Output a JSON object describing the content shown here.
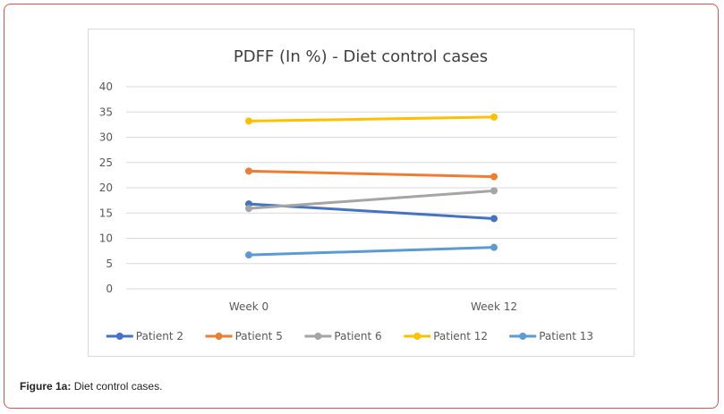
{
  "caption": {
    "label": "Figure 1a:",
    "text": " Diet control cases."
  },
  "chart_data": {
    "type": "line",
    "title": "PDFF (In %) - Diet control cases",
    "categories": [
      "Week 0",
      "Week 12"
    ],
    "ylim": [
      0,
      40
    ],
    "yticks": [
      0,
      5,
      10,
      15,
      20,
      25,
      30,
      35,
      40
    ],
    "grid": true,
    "legend_position": "bottom",
    "series": [
      {
        "name": "Patient 2",
        "color": "#4472C4",
        "values": [
          16.8,
          13.9
        ]
      },
      {
        "name": "Patient 5",
        "color": "#ED7D31",
        "values": [
          23.3,
          22.2
        ]
      },
      {
        "name": "Patient 6",
        "color": "#A5A5A5",
        "values": [
          15.9,
          19.4
        ]
      },
      {
        "name": "Patient 12",
        "color": "#FFC000",
        "values": [
          33.2,
          34.0
        ]
      },
      {
        "name": "Patient 13",
        "color": "#5B9BD5",
        "values": [
          6.7,
          8.2
        ]
      }
    ]
  }
}
